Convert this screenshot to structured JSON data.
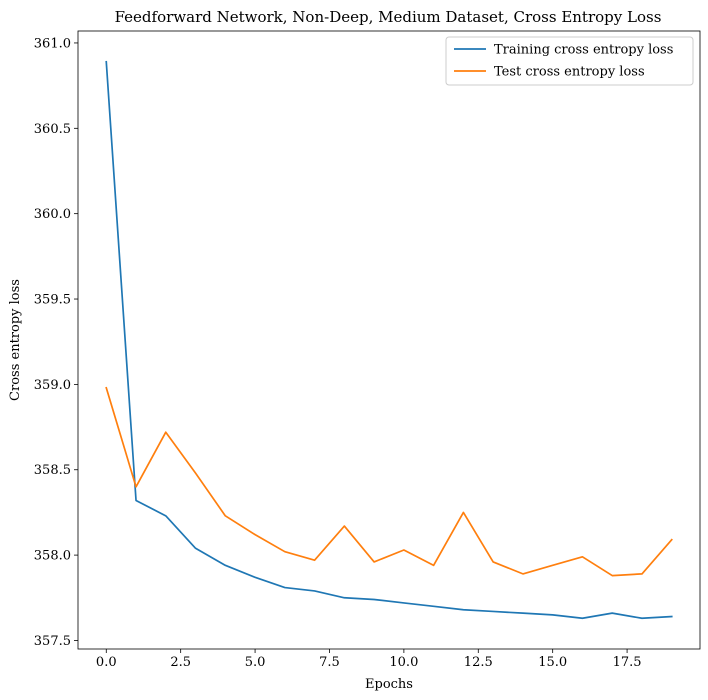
{
  "chart_data": {
    "type": "line",
    "title": "Feedforward Network, Non-Deep, Medium Dataset, Cross Entropy Loss",
    "xlabel": "Epochs",
    "ylabel": "Cross entropy loss",
    "xlim": [
      -0.95,
      19.95
    ],
    "ylim": [
      357.45,
      361.07
    ],
    "xticks": [
      0.0,
      2.5,
      5.0,
      7.5,
      10.0,
      12.5,
      15.0,
      17.5
    ],
    "xtick_labels": [
      "0.0",
      "2.5",
      "5.0",
      "7.5",
      "10.0",
      "12.5",
      "15.0",
      "17.5"
    ],
    "yticks": [
      357.5,
      358.0,
      358.5,
      359.0,
      359.5,
      360.0,
      360.5,
      361.0
    ],
    "ytick_labels": [
      "357.5",
      "358.0",
      "358.5",
      "359.0",
      "359.5",
      "360.0",
      "360.5",
      "361.0"
    ],
    "x": [
      0,
      1,
      2,
      3,
      4,
      5,
      6,
      7,
      8,
      9,
      10,
      11,
      12,
      13,
      14,
      15,
      16,
      17,
      18,
      19
    ],
    "grid": false,
    "legend_position": "top-right",
    "series": [
      {
        "name": "Training cross entropy loss",
        "color": "#1f77b4",
        "values": [
          360.89,
          358.32,
          358.23,
          358.04,
          357.94,
          357.87,
          357.81,
          357.79,
          357.75,
          357.74,
          357.72,
          357.7,
          357.68,
          357.67,
          357.66,
          357.65,
          357.63,
          357.66,
          357.63,
          357.64
        ]
      },
      {
        "name": "Test cross entropy loss",
        "color": "#ff7f0e",
        "values": [
          358.98,
          358.4,
          358.72,
          358.48,
          358.23,
          358.12,
          358.02,
          357.97,
          358.17,
          357.96,
          358.03,
          357.94,
          358.25,
          357.96,
          357.89,
          357.94,
          357.99,
          357.88,
          357.89,
          358.09
        ]
      }
    ]
  }
}
